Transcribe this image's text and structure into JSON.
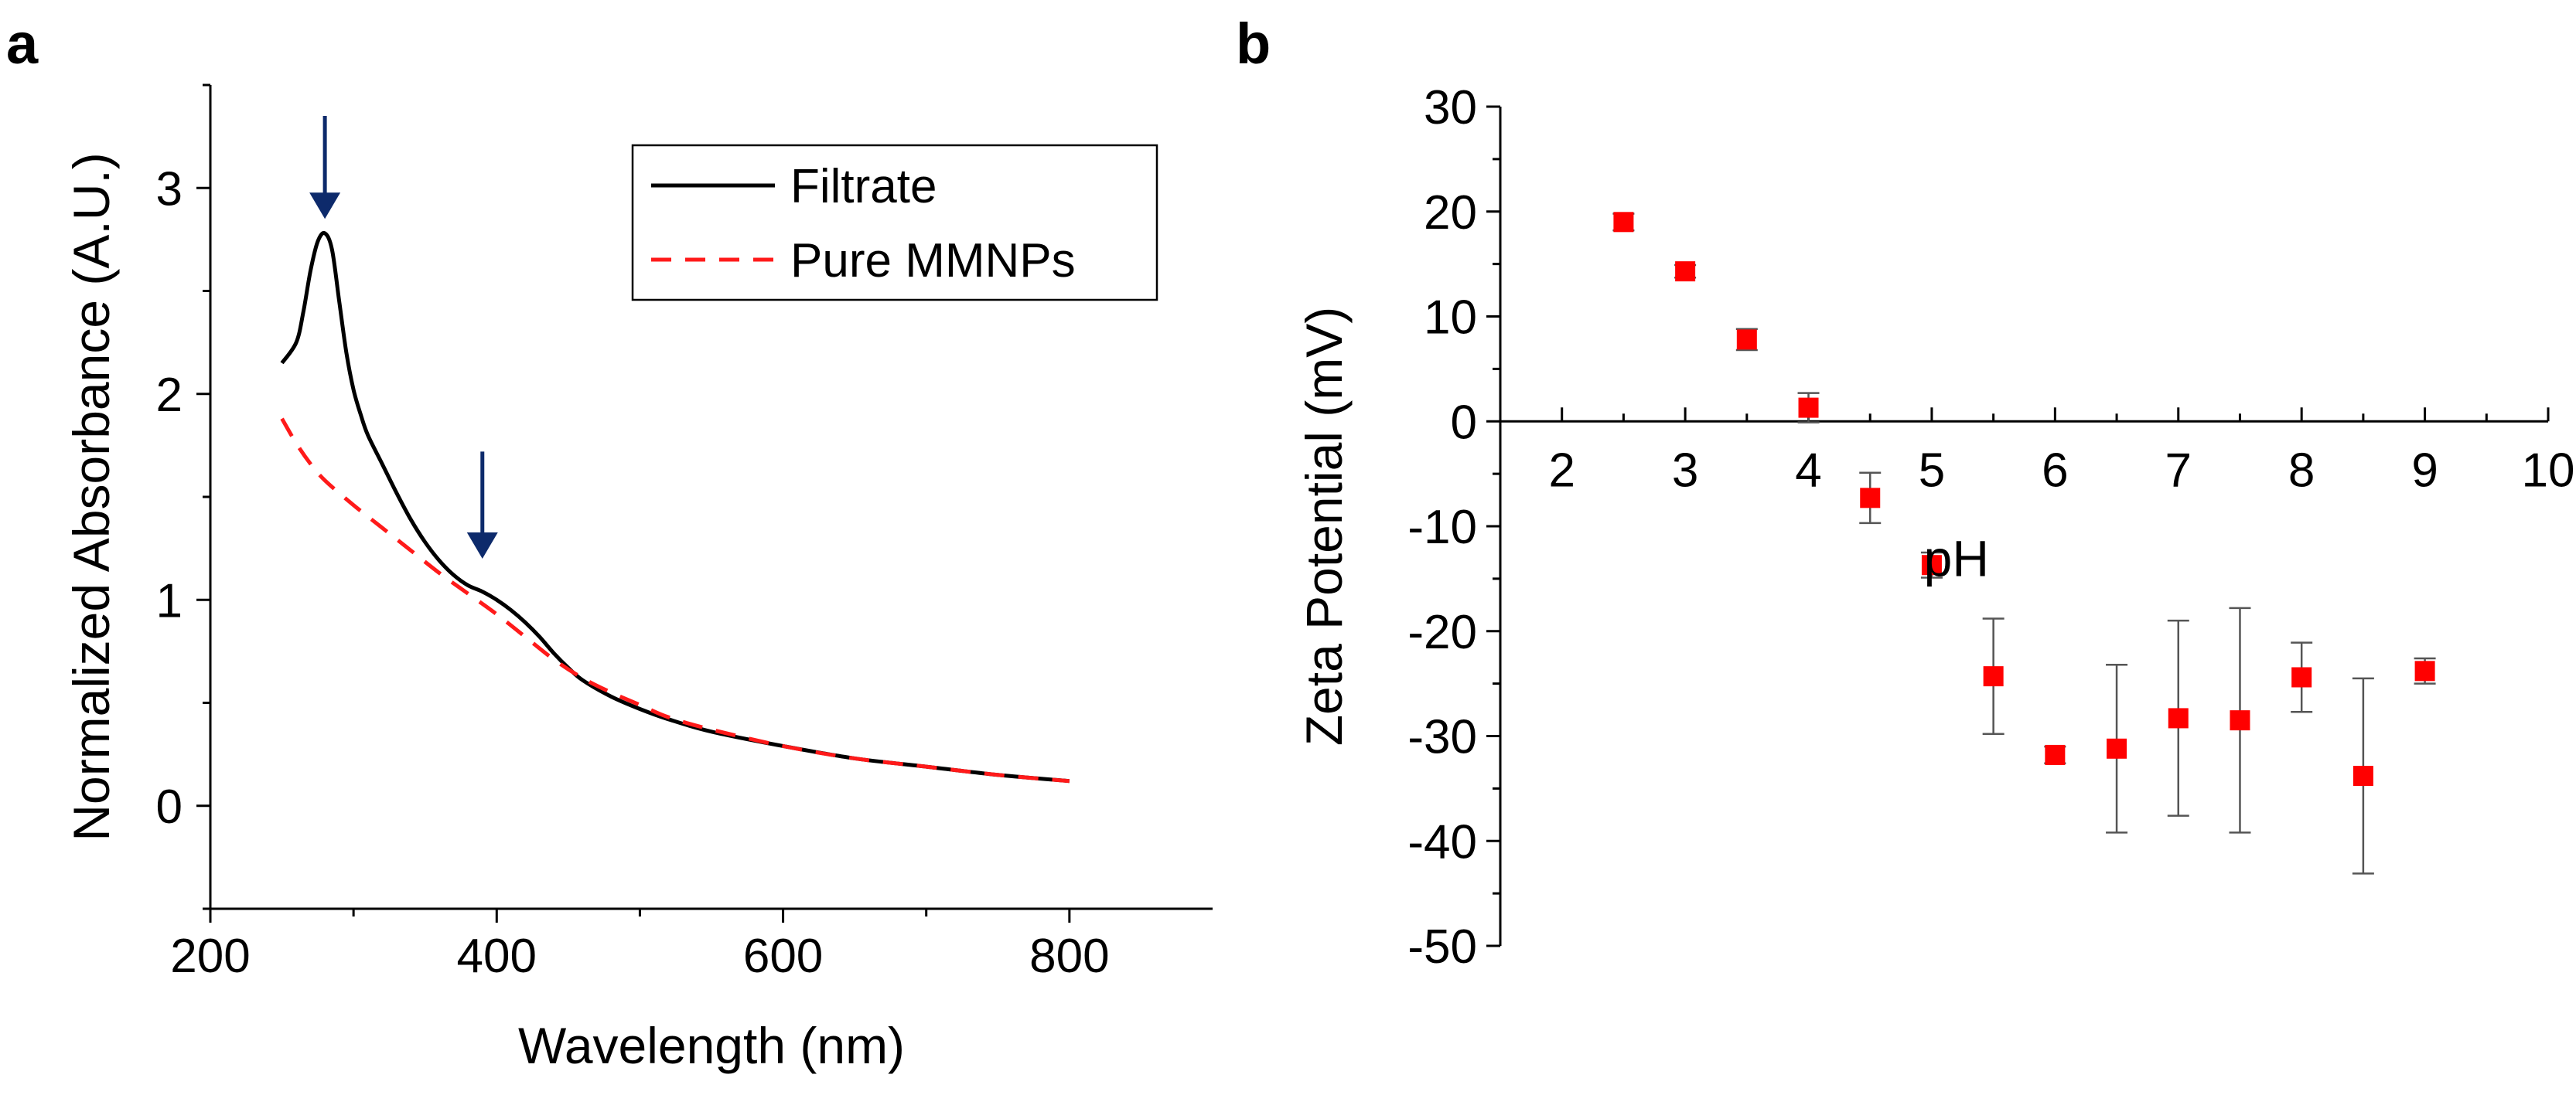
{
  "chart_data": [
    {
      "panel": "a",
      "type": "line",
      "xlabel": "Wavelength (nm)",
      "ylabel": "Normalized Absorbance (A.U.)",
      "xlim": [
        200,
        900
      ],
      "ylim": [
        -0.5,
        3.5
      ],
      "xticks": [
        200,
        400,
        600,
        800
      ],
      "yticks": [
        0,
        1,
        2,
        3
      ],
      "legend_position": "top-right",
      "series": [
        {
          "name": "Filtrate",
          "style": "solid",
          "color": "#000000",
          "x": [
            250,
            260,
            265,
            270,
            275,
            280,
            285,
            290,
            295,
            300,
            305,
            310,
            320,
            330,
            340,
            350,
            360,
            370,
            380,
            390,
            400,
            410,
            420,
            430,
            440,
            450,
            460,
            480,
            500,
            520,
            550,
            600,
            650,
            700,
            750,
            800
          ],
          "y": [
            2.15,
            2.25,
            2.4,
            2.6,
            2.74,
            2.78,
            2.7,
            2.45,
            2.2,
            2.02,
            1.9,
            1.8,
            1.66,
            1.52,
            1.39,
            1.28,
            1.19,
            1.12,
            1.07,
            1.04,
            1.0,
            0.95,
            0.89,
            0.82,
            0.74,
            0.67,
            0.61,
            0.53,
            0.47,
            0.42,
            0.36,
            0.29,
            0.23,
            0.19,
            0.15,
            0.12
          ]
        },
        {
          "name": "Pure MMNPs",
          "style": "dashed",
          "color": "#ff1a1a",
          "x": [
            250,
            260,
            270,
            280,
            300,
            320,
            340,
            360,
            380,
            400,
            420,
            440,
            460,
            480,
            500,
            520,
            550,
            600,
            650,
            700,
            750,
            800
          ],
          "y": [
            1.88,
            1.76,
            1.66,
            1.58,
            1.46,
            1.35,
            1.24,
            1.13,
            1.03,
            0.93,
            0.82,
            0.71,
            0.62,
            0.55,
            0.49,
            0.43,
            0.37,
            0.29,
            0.23,
            0.19,
            0.15,
            0.12
          ]
        }
      ],
      "annotations": [
        {
          "type": "arrow",
          "x": 280,
          "y_tail": 3.35,
          "y_head": 2.85,
          "color": "#0d2a6b"
        },
        {
          "type": "arrow",
          "x": 390,
          "y_tail": 1.72,
          "y_head": 1.2,
          "color": "#0d2a6b"
        }
      ]
    },
    {
      "panel": "b",
      "type": "scatter",
      "xlabel": "pH",
      "ylabel": "Zeta Potential (mV)",
      "xlim": [
        1.5,
        10
      ],
      "ylim": [
        -50,
        30
      ],
      "xticks": [
        2,
        3,
        4,
        5,
        6,
        7,
        8,
        9,
        10
      ],
      "yticks": [
        -50,
        -40,
        -30,
        -20,
        -10,
        0,
        10,
        20,
        30
      ],
      "series": [
        {
          "name": "Zeta Potential",
          "color": "#ff0000",
          "x": [
            2.5,
            3,
            3.5,
            4,
            4.5,
            5,
            5.5,
            6,
            6.5,
            7,
            7.5,
            8,
            8.5,
            9
          ],
          "y": [
            19,
            14.3,
            7.8,
            1.3,
            -7.3,
            -13.7,
            -24.3,
            -31.8,
            -31.2,
            -28.3,
            -28.5,
            -24.4,
            -33.8,
            -23.8
          ],
          "error": [
            0.8,
            0.6,
            1.0,
            1.4,
            2.4,
            1.2,
            5.5,
            0.8,
            8.0,
            9.3,
            10.7,
            3.3,
            9.3,
            1.2
          ]
        }
      ]
    }
  ],
  "panels": {
    "a": "a",
    "b": "b"
  },
  "legend": {
    "filtrate": "Filtrate",
    "mmnps": "Pure MMNPs"
  },
  "colors": {
    "arrow": "#0d2a6b",
    "filtrate": "#000000",
    "mmnps": "#ff1a1a",
    "marker": "#ff0000",
    "errorbar": "#555555"
  }
}
